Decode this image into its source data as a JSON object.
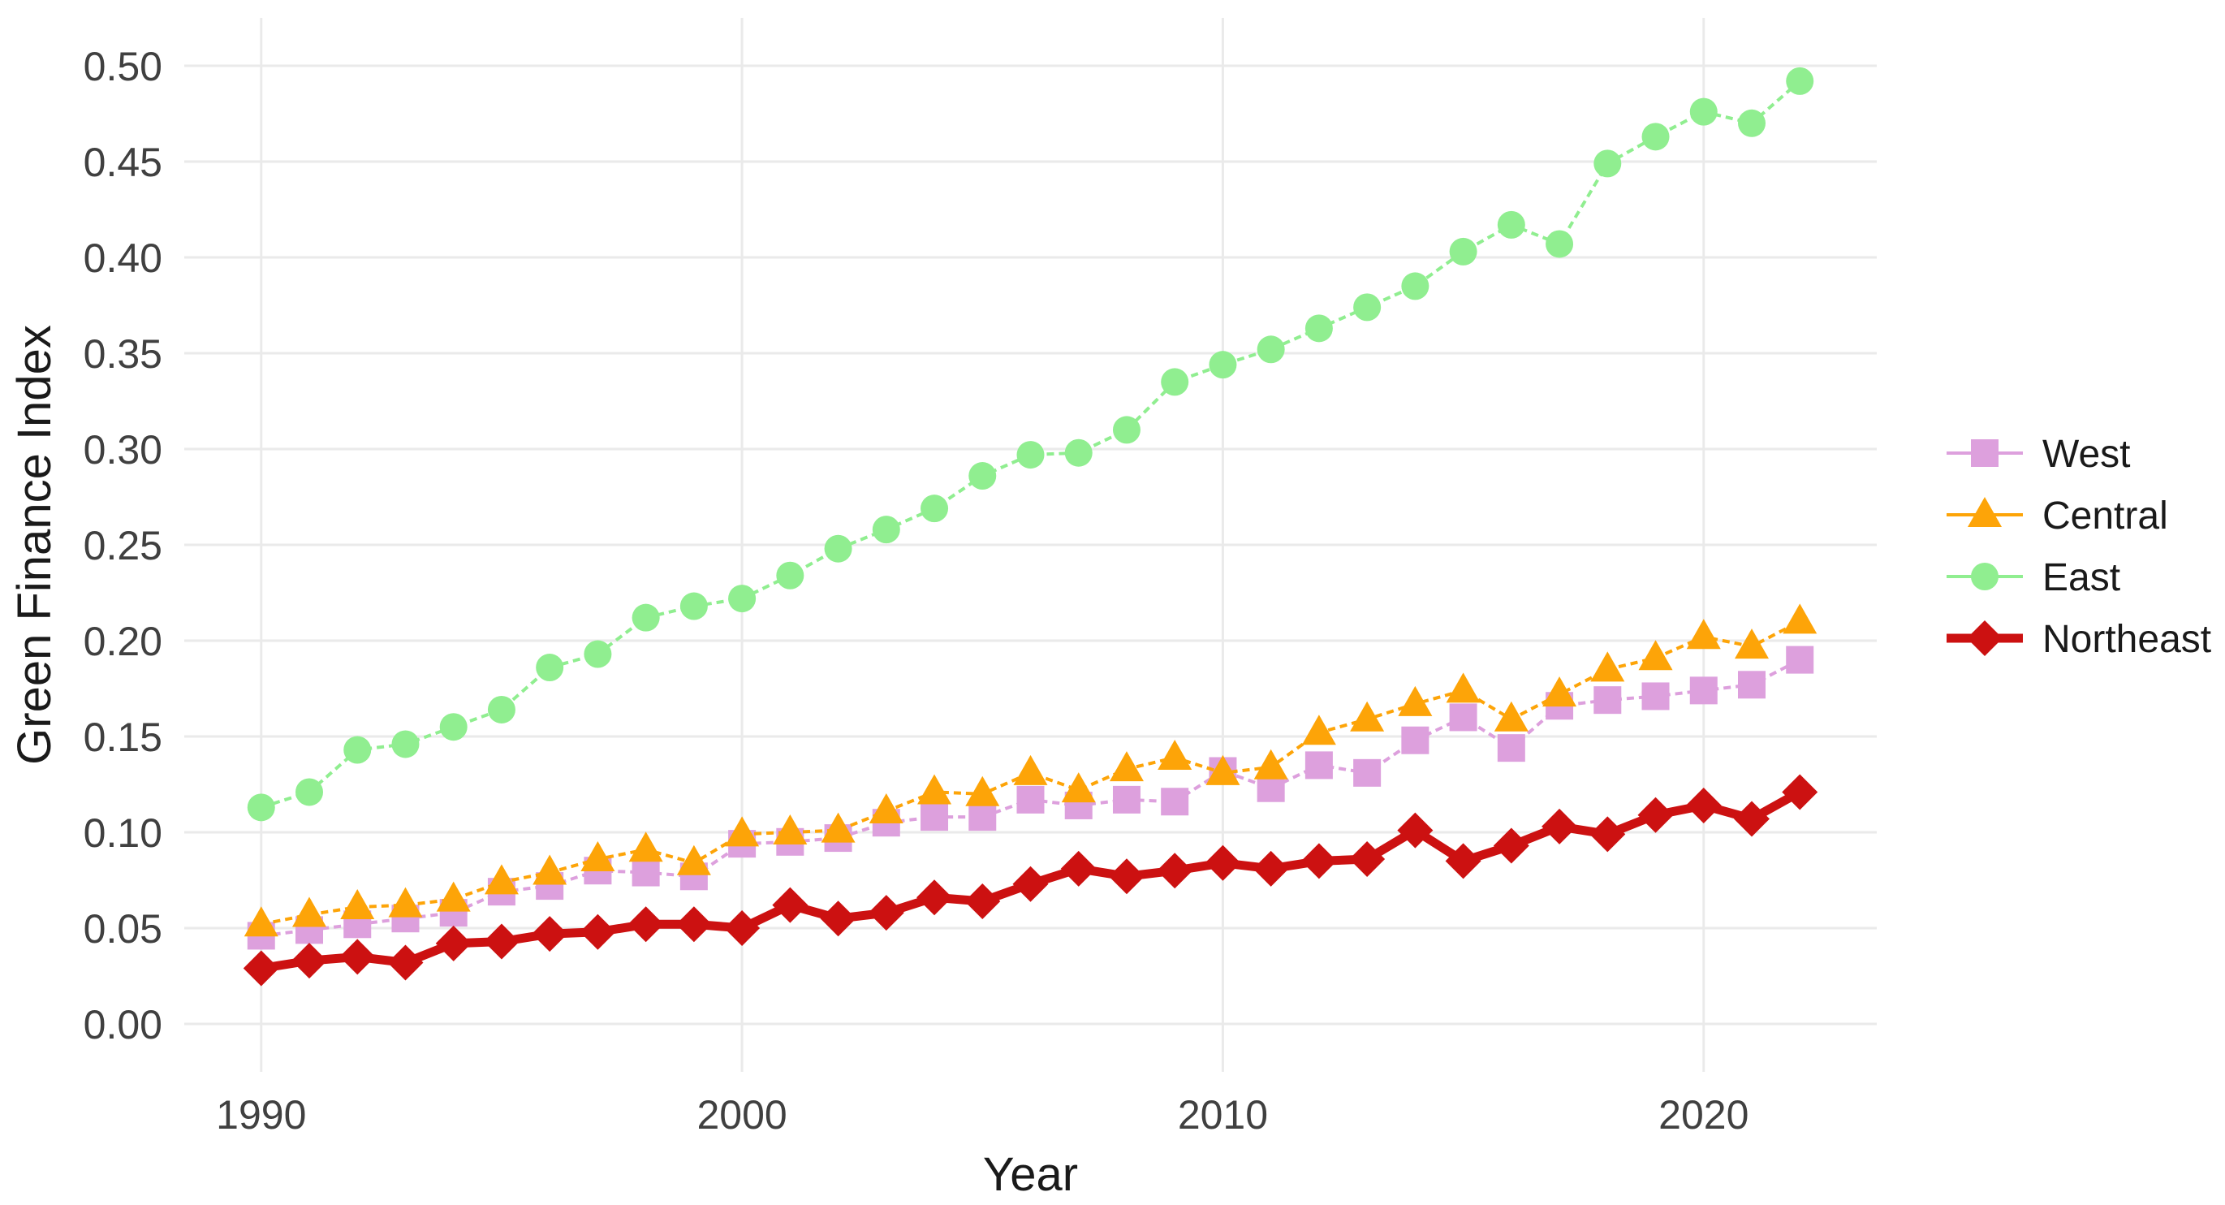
{
  "chart_data": {
    "type": "line",
    "title": "",
    "xlabel": "Year",
    "ylabel": "Green Finance Index",
    "x_ticks": [
      1990,
      2000,
      2010,
      2020
    ],
    "y_ticks": [
      0.0,
      0.05,
      0.1,
      0.15,
      0.2,
      0.25,
      0.3,
      0.35,
      0.4,
      0.45,
      0.5
    ],
    "y_tick_labels": [
      "0.00",
      "0.05",
      "0.10",
      "0.15",
      "0.20",
      "0.25",
      "0.30",
      "0.35",
      "0.40",
      "0.45",
      "0.50"
    ],
    "xlim": [
      1988.4,
      2023.6
    ],
    "ylim": [
      -0.025,
      0.525
    ],
    "grid": "major-only",
    "grid_color": "#EAEAEA",
    "background_color": "#FFFFFF",
    "axis_text_color": "#404040",
    "axis_title_color": "#1A1A1A",
    "legend_position": "right",
    "legend_text_color": "#1A1A1A",
    "x": [
      1990,
      1991,
      1992,
      1993,
      1994,
      1995,
      1996,
      1997,
      1998,
      1999,
      2000,
      2001,
      2002,
      2003,
      2004,
      2005,
      2006,
      2007,
      2008,
      2009,
      2010,
      2011,
      2012,
      2013,
      2014,
      2015,
      2016,
      2017,
      2018,
      2019,
      2020,
      2021,
      2022
    ],
    "series": [
      {
        "name": "West",
        "color": "#DDA0DD",
        "marker": "square",
        "line_style": "dashed",
        "line_width": 4,
        "values": [
          0.046,
          0.049,
          0.052,
          0.055,
          0.058,
          0.069,
          0.072,
          0.08,
          0.079,
          0.077,
          0.094,
          0.095,
          0.097,
          0.105,
          0.108,
          0.108,
          0.117,
          0.114,
          0.117,
          0.116,
          0.132,
          0.123,
          0.135,
          0.131,
          0.148,
          0.16,
          0.144,
          0.166,
          0.169,
          0.171,
          0.174,
          0.177,
          0.19
        ]
      },
      {
        "name": "Central",
        "color": "#FDA408",
        "marker": "triangle",
        "line_style": "dashed",
        "line_width": 4,
        "values": [
          0.052,
          0.057,
          0.061,
          0.062,
          0.065,
          0.074,
          0.079,
          0.086,
          0.091,
          0.084,
          0.099,
          0.1,
          0.101,
          0.111,
          0.121,
          0.12,
          0.131,
          0.122,
          0.133,
          0.139,
          0.131,
          0.134,
          0.152,
          0.159,
          0.167,
          0.174,
          0.159,
          0.172,
          0.185,
          0.191,
          0.202,
          0.197,
          0.21
        ]
      },
      {
        "name": "East",
        "color": "#90EE90",
        "marker": "circle",
        "line_style": "dashed",
        "line_width": 4,
        "values": [
          0.113,
          0.121,
          0.143,
          0.146,
          0.155,
          0.164,
          0.186,
          0.193,
          0.212,
          0.218,
          0.222,
          0.234,
          0.248,
          0.258,
          0.269,
          0.286,
          0.297,
          0.298,
          0.31,
          0.335,
          0.344,
          0.352,
          0.363,
          0.374,
          0.385,
          0.403,
          0.417,
          0.407,
          0.449,
          0.463,
          0.476,
          0.47,
          0.492
        ]
      },
      {
        "name": "Northeast",
        "color": "#CC1111",
        "marker": "diamond",
        "line_style": "solid",
        "line_width": 11,
        "values": [
          0.029,
          0.033,
          0.035,
          0.032,
          0.042,
          0.043,
          0.047,
          0.048,
          0.052,
          0.052,
          0.05,
          0.062,
          0.055,
          0.058,
          0.066,
          0.064,
          0.073,
          0.081,
          0.077,
          0.08,
          0.084,
          0.081,
          0.085,
          0.086,
          0.101,
          0.085,
          0.093,
          0.103,
          0.099,
          0.109,
          0.114,
          0.107,
          0.121
        ]
      }
    ]
  }
}
